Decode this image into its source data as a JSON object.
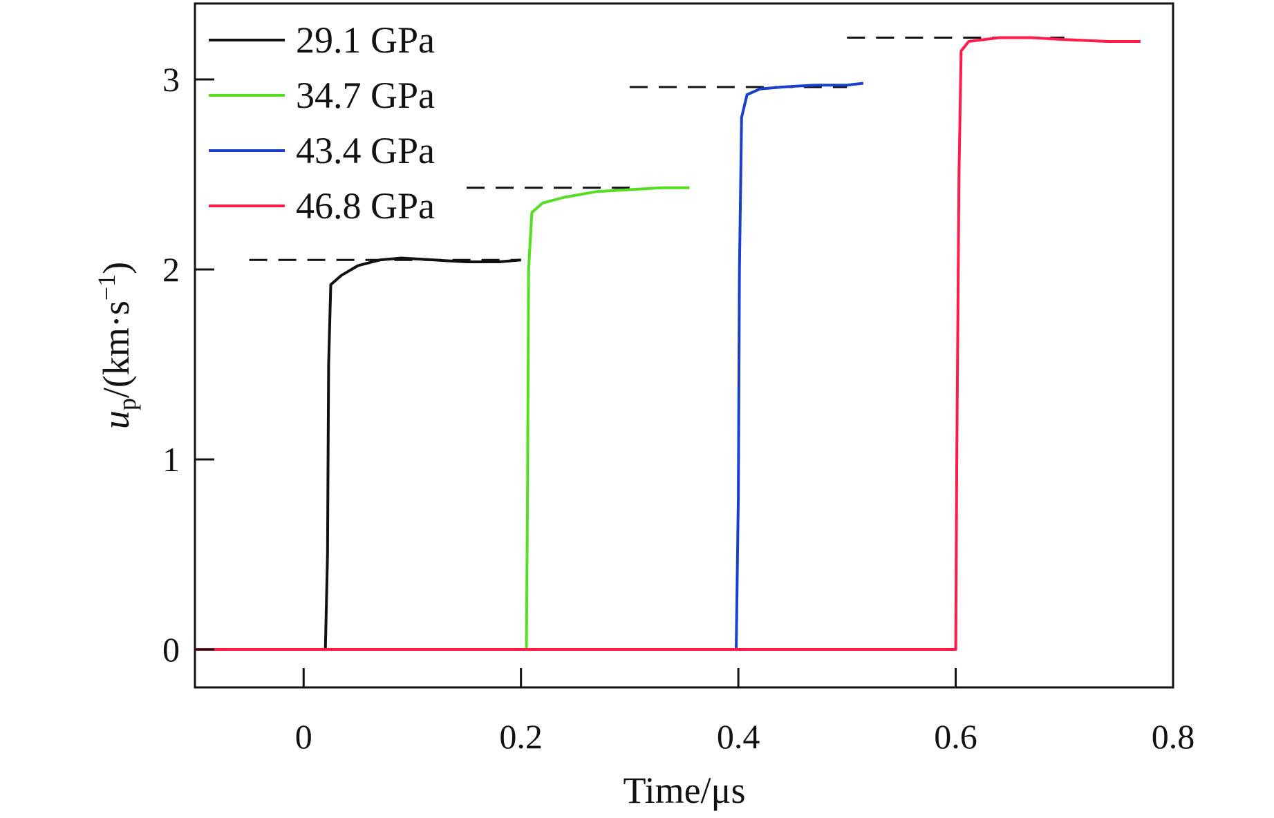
{
  "chart_data": {
    "type": "line",
    "xlabel": "Time/μs",
    "ylabel": {
      "base": "u",
      "sub": "p",
      "unit_prefix": "/(km·s",
      "unit_sup": "−1",
      "unit_suffix": ")"
    },
    "xlim": [
      -0.1,
      0.8
    ],
    "ylim": [
      -0.2,
      3.4
    ],
    "xticks": [
      0,
      0.2,
      0.4,
      0.6,
      0.8
    ],
    "xtick_labels": [
      "0",
      "0.2",
      "0.4",
      "0.6",
      "0.8"
    ],
    "yticks": [
      0,
      1,
      2,
      3
    ],
    "ytick_labels": [
      "0",
      "1",
      "2",
      "3"
    ],
    "grid": false,
    "legend_position": "top-left",
    "series": [
      {
        "name": "29.1 GPa",
        "color": "#111111",
        "points": [
          [
            -0.1,
            0
          ],
          [
            0.02,
            0
          ],
          [
            0.022,
            0.5
          ],
          [
            0.023,
            1.5
          ],
          [
            0.025,
            1.92
          ],
          [
            0.035,
            1.97
          ],
          [
            0.05,
            2.02
          ],
          [
            0.07,
            2.05
          ],
          [
            0.09,
            2.06
          ],
          [
            0.12,
            2.05
          ],
          [
            0.15,
            2.04
          ],
          [
            0.18,
            2.04
          ],
          [
            0.2,
            2.05
          ]
        ]
      },
      {
        "name": "34.7 GPa",
        "color": "#55dd22",
        "points": [
          [
            -0.1,
            0
          ],
          [
            0.205,
            0
          ],
          [
            0.206,
            0.8
          ],
          [
            0.207,
            2.0
          ],
          [
            0.21,
            2.3
          ],
          [
            0.22,
            2.35
          ],
          [
            0.24,
            2.38
          ],
          [
            0.27,
            2.41
          ],
          [
            0.3,
            2.42
          ],
          [
            0.33,
            2.43
          ],
          [
            0.355,
            2.43
          ]
        ]
      },
      {
        "name": "43.4 GPa",
        "color": "#1a3fcc",
        "points": [
          [
            -0.1,
            0
          ],
          [
            0.398,
            0
          ],
          [
            0.4,
            0.8
          ],
          [
            0.401,
            2.0
          ],
          [
            0.403,
            2.8
          ],
          [
            0.408,
            2.92
          ],
          [
            0.42,
            2.95
          ],
          [
            0.44,
            2.96
          ],
          [
            0.47,
            2.97
          ],
          [
            0.5,
            2.97
          ],
          [
            0.515,
            2.98
          ]
        ]
      },
      {
        "name": "46.8 GPa",
        "color": "#ff1a4a",
        "points": [
          [
            -0.1,
            0
          ],
          [
            0.6,
            0
          ],
          [
            0.601,
            1.0
          ],
          [
            0.603,
            2.5
          ],
          [
            0.605,
            3.15
          ],
          [
            0.612,
            3.2
          ],
          [
            0.64,
            3.22
          ],
          [
            0.67,
            3.22
          ],
          [
            0.7,
            3.21
          ],
          [
            0.74,
            3.2
          ],
          [
            0.77,
            3.2
          ]
        ]
      }
    ],
    "reference_lines": [
      {
        "color": "#111111",
        "y": 2.05,
        "x": [
          -0.05,
          0.2
        ]
      },
      {
        "color": "#111111",
        "y": 2.43,
        "x": [
          0.15,
          0.3
        ]
      },
      {
        "color": "#111111",
        "y": 2.96,
        "x": [
          0.3,
          0.5
        ]
      },
      {
        "color": "#111111",
        "y": 3.22,
        "x": [
          0.5,
          0.7
        ]
      }
    ]
  }
}
